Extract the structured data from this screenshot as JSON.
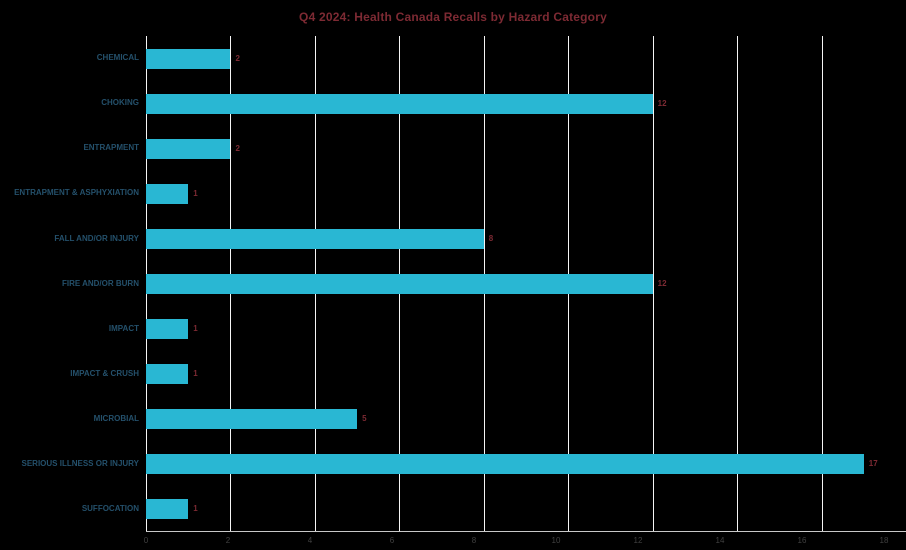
{
  "chart_data": {
    "type": "bar",
    "orientation": "horizontal",
    "title": "Q4 2024: Health Canada Recalls by Hazard Category",
    "categories": [
      "CHEMICAL",
      "CHOKING",
      "ENTRAPMENT",
      "ENTRAPMENT & ASPHYXIATION",
      "FALL AND/OR INJURY",
      "FIRE AND/OR BURN",
      "IMPACT",
      "IMPACT & CRUSH",
      "MICROBIAL",
      "SERIOUS ILLNESS OR INJURY",
      "SUFFOCATION"
    ],
    "values": [
      2,
      12,
      2,
      1,
      8,
      12,
      1,
      1,
      5,
      17,
      1
    ],
    "xlim": [
      0,
      18
    ],
    "xticks": [
      0,
      2,
      4,
      6,
      8,
      10,
      12,
      14,
      16,
      18
    ],
    "grid": true,
    "legend": "none",
    "colors": {
      "bar": "#29b7d3",
      "title": "#7d2a33",
      "value_label": "#7d2a33",
      "category_label": "#24506b",
      "tick_label": "#404040",
      "background": "#000000",
      "gridline": "#f5f5f5"
    }
  }
}
